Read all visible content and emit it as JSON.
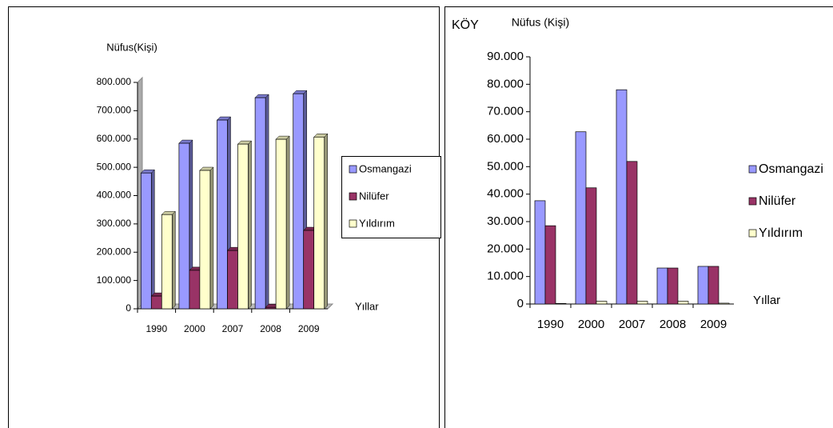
{
  "chart_data": [
    {
      "type": "bar",
      "title": "Nüfus(Kişi)",
      "x_label": "Yıllar",
      "categories": [
        "1990",
        "2000",
        "2007",
        "2008",
        "2009"
      ],
      "series": [
        {
          "name": "Osmangazi",
          "color": "#9999ff",
          "values": [
            480000,
            585000,
            667000,
            746000,
            760000
          ]
        },
        {
          "name": "Nilüfer",
          "color": "#993366",
          "values": [
            45000,
            136000,
            206000,
            5000,
            277000
          ]
        },
        {
          "name": "Yıldırım",
          "color": "#ffffcc",
          "values": [
            333000,
            489000,
            582000,
            599000,
            607000
          ]
        }
      ],
      "ylim": [
        0,
        800000
      ],
      "yticks": [
        0,
        {
          "value": 100000,
          "label": "100.000"
        },
        {
          "value": 200000,
          "label": "200.000"
        },
        {
          "value": 300000,
          "label": "300.000"
        },
        {
          "value": 400000,
          "label": "400.000"
        },
        {
          "value": 500000,
          "label": "500.000"
        },
        {
          "value": 600000,
          "label": "600.000"
        },
        {
          "value": 700000,
          "label": "700.000"
        },
        {
          "value": 800000,
          "label": "800.000"
        }
      ],
      "legend": "right"
    },
    {
      "type": "bar",
      "label": "KÖY",
      "title": "Nüfus (Kişi)",
      "x_label": "Yıllar",
      "categories": [
        "1990",
        "2000",
        "2007",
        "2008",
        "2009"
      ],
      "series": [
        {
          "name": "Osmangazi",
          "color": "#9999ff",
          "values": [
            37600,
            62700,
            78000,
            13100,
            13700
          ]
        },
        {
          "name": "Nilüfer",
          "color": "#993366",
          "values": [
            28500,
            42300,
            51900,
            13100,
            13700
          ]
        },
        {
          "name": "Yıldırım",
          "color": "#ffffcc",
          "values": [
            200,
            1000,
            1000,
            1000,
            300
          ]
        }
      ],
      "ylim": [
        0,
        90000
      ],
      "yticks": [
        0,
        {
          "value": 10000,
          "label": "10.000"
        },
        {
          "value": 20000,
          "label": "20.000"
        },
        {
          "value": 30000,
          "label": "30.000"
        },
        {
          "value": 40000,
          "label": "40.000"
        },
        {
          "value": 50000,
          "label": "50.000"
        },
        {
          "value": 60000,
          "label": "60.000"
        },
        {
          "value": 70000,
          "label": "70.000"
        },
        {
          "value": 80000,
          "label": "80.000"
        },
        {
          "value": 90000,
          "label": "90.000"
        }
      ],
      "legend": "right"
    }
  ]
}
